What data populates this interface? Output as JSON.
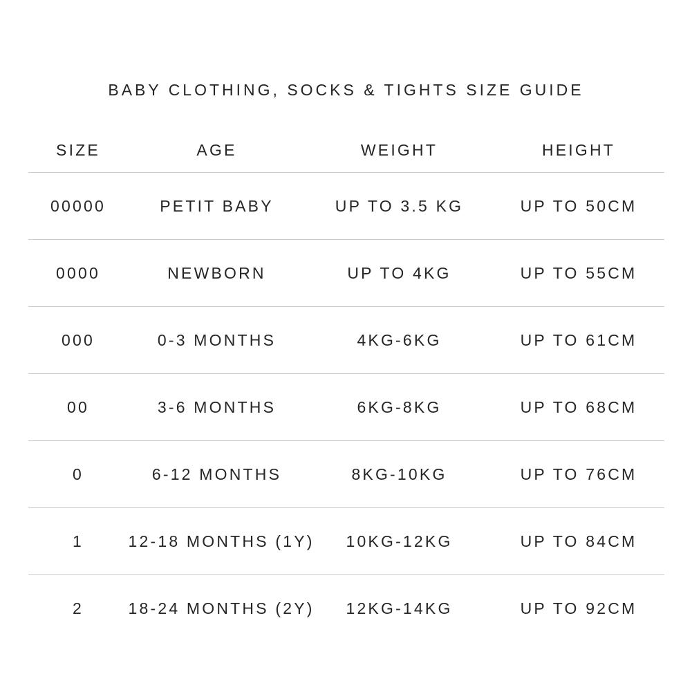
{
  "chart_data": {
    "type": "table",
    "title": "BABY CLOTHING, SOCKS & TIGHTS SIZE GUIDE",
    "columns": [
      "SIZE",
      "AGE",
      "WEIGHT",
      "HEIGHT"
    ],
    "rows": [
      [
        "00000",
        "PETIT BABY",
        "UP TO 3.5 KG",
        "UP TO 50CM"
      ],
      [
        "0000",
        "NEWBORN",
        "UP TO 4KG",
        "UP TO 55CM"
      ],
      [
        "000",
        "0-3 MONTHS",
        "4KG-6KG",
        "UP TO 61CM"
      ],
      [
        "00",
        "3-6 MONTHS",
        "6KG-8KG",
        "UP TO 68CM"
      ],
      [
        "0",
        "6-12 MONTHS",
        "8KG-10KG",
        "UP TO 76CM"
      ],
      [
        "1",
        "12-18 MONTHS (1Y)",
        "10KG-12KG",
        "UP TO 84CM"
      ],
      [
        "2",
        "18-24 MONTHS (2Y)",
        "12KG-14KG",
        "UP TO 92CM"
      ]
    ],
    "layout": {
      "legend": "none",
      "grid": "horizontal-dividers-only",
      "divider_after_last_row": false,
      "text_transform": "uppercase"
    }
  },
  "colors": {
    "text": "#262626",
    "divider": "#cccccc",
    "background": "#ffffff"
  }
}
